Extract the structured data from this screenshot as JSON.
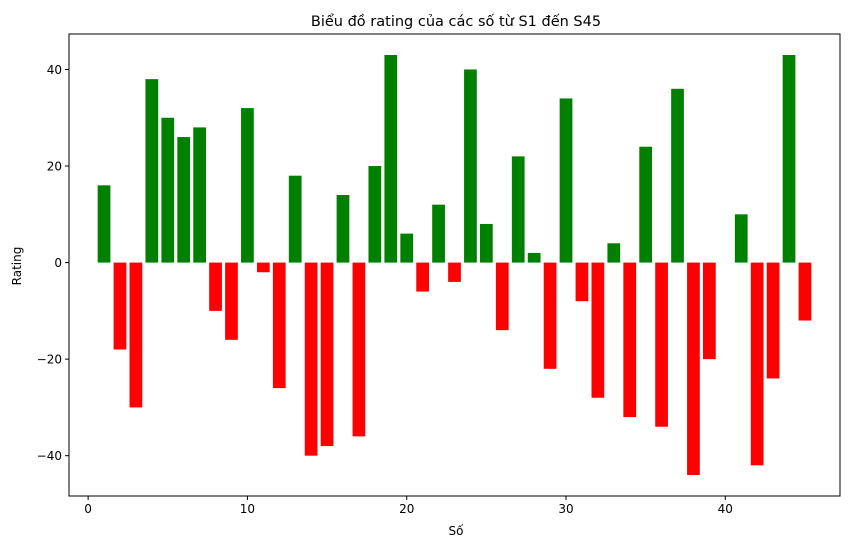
{
  "chart_data": {
    "type": "bar",
    "title": "Biểu đồ rating của các số từ S1 đến S45",
    "xlabel": "Số",
    "ylabel": "Rating",
    "x": [
      1,
      2,
      3,
      4,
      5,
      6,
      7,
      8,
      9,
      10,
      11,
      12,
      13,
      14,
      15,
      16,
      17,
      18,
      19,
      20,
      21,
      22,
      23,
      24,
      25,
      26,
      27,
      28,
      29,
      30,
      31,
      32,
      33,
      34,
      35,
      36,
      37,
      38,
      39,
      40,
      41,
      42,
      43,
      44,
      45
    ],
    "values": [
      16,
      -18,
      -30,
      38,
      30,
      26,
      28,
      -10,
      -16,
      32,
      -2,
      -26,
      18,
      -40,
      -38,
      14,
      -36,
      20,
      43,
      6,
      -6,
      12,
      -4,
      40,
      8,
      -14,
      22,
      2,
      -22,
      34,
      -8,
      -28,
      4,
      -32,
      24,
      -34,
      36,
      -44,
      -20,
      0,
      10,
      -42,
      -24,
      43,
      -12
    ],
    "xlim": [
      -1.2,
      47.2
    ],
    "ylim": [
      -48.35,
      47.35
    ],
    "xticks": [
      0,
      10,
      20,
      30,
      40
    ],
    "yticks": [
      -40,
      -20,
      0,
      20,
      40
    ],
    "colors": {
      "positive": "#008000",
      "negative": "#ff0000"
    },
    "grid": false,
    "legend": "none"
  }
}
